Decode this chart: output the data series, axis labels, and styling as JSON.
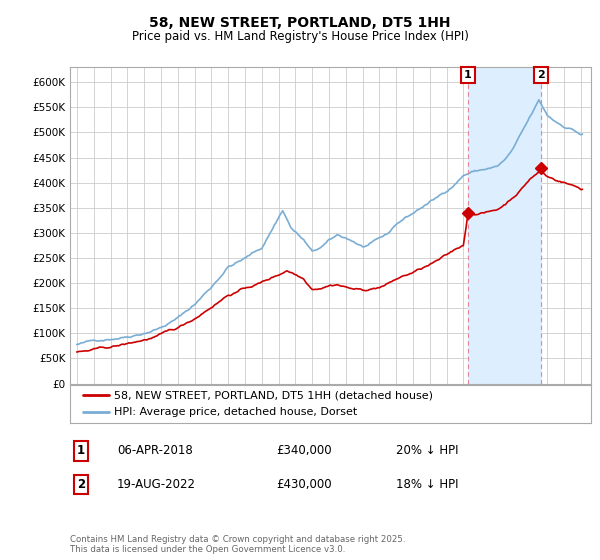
{
  "title": "58, NEW STREET, PORTLAND, DT5 1HH",
  "subtitle": "Price paid vs. HM Land Registry's House Price Index (HPI)",
  "legend_line1": "58, NEW STREET, PORTLAND, DT5 1HH (detached house)",
  "legend_line2": "HPI: Average price, detached house, Dorset",
  "annotation1_label": "1",
  "annotation1_date": "06-APR-2018",
  "annotation1_price": "£340,000",
  "annotation1_hpi": "20% ↓ HPI",
  "annotation2_label": "2",
  "annotation2_date": "19-AUG-2022",
  "annotation2_price": "£430,000",
  "annotation2_hpi": "18% ↓ HPI",
  "footer": "Contains HM Land Registry data © Crown copyright and database right 2025.\nThis data is licensed under the Open Government Licence v3.0.",
  "red_color": "#cc0000",
  "blue_color": "#7aadd4",
  "shade_color": "#ddeeff",
  "annotation_line_color": "#dd8899",
  "grid_color": "#cccccc",
  "background_color": "#ffffff",
  "ylim_min": 0,
  "ylim_max": 630000,
  "ytick_step": 50000,
  "year_start": 1995,
  "year_end": 2025,
  "sale1_year": 2018.27,
  "sale1_price": 340000,
  "sale2_year": 2022.63,
  "sale2_price": 430000
}
